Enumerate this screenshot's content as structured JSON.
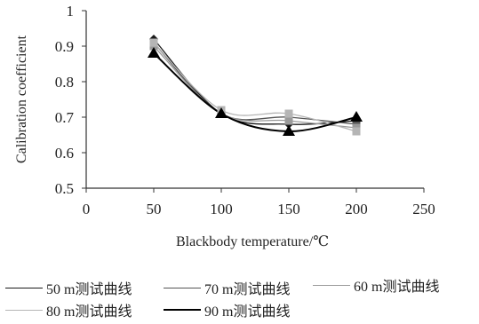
{
  "chart_data": {
    "type": "line",
    "xlabel": "Blackbody temperature/℃",
    "ylabel": "Calibration coefficient",
    "xlim": [
      0,
      250
    ],
    "ylim": [
      0.5,
      1
    ],
    "x_ticks": [
      "0",
      "50",
      "100",
      "150",
      "200",
      "250"
    ],
    "y_ticks": [
      "0.5",
      "0.6",
      "0.7",
      "0.8",
      "0.9",
      "1"
    ],
    "grid": false,
    "legend_position": "bottom",
    "x": [
      50,
      100,
      150,
      200
    ],
    "series": [
      {
        "name": "50 m测试曲线",
        "values": [
          0.92,
          0.71,
          0.68,
          0.69
        ],
        "color": "#1a1a1a",
        "marker": "diamond"
      },
      {
        "name": "70 m测试曲线",
        "values": [
          0.91,
          0.71,
          0.7,
          0.68
        ],
        "color": "#555555",
        "marker": "square"
      },
      {
        "name": "60 m测试曲线",
        "values": [
          0.9,
          0.71,
          0.69,
          0.67
        ],
        "color": "#9a9a9a",
        "marker": "square"
      },
      {
        "name": "80 m测试曲线",
        "values": [
          0.91,
          0.72,
          0.71,
          0.66
        ],
        "color": "#b5b5b5",
        "marker": "square"
      },
      {
        "name": "90 m测试曲线",
        "values": [
          0.88,
          0.71,
          0.66,
          0.7
        ],
        "color": "#000000",
        "marker": "triangle"
      }
    ]
  }
}
